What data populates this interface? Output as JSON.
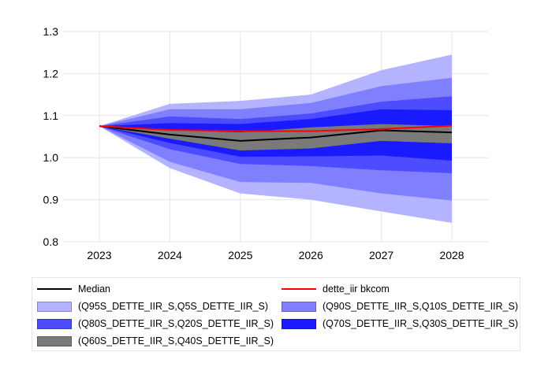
{
  "chart_data": {
    "type": "area",
    "title": "",
    "xlabel": "",
    "ylabel": "",
    "x": [
      2023,
      2024,
      2025,
      2026,
      2027,
      2028
    ],
    "x_ticks": [
      "2023",
      "2024",
      "2025",
      "2026",
      "2027",
      "2028"
    ],
    "ylim": [
      0.8,
      1.3
    ],
    "y_ticks": [
      "0.8",
      "0.9",
      "1.0",
      "1.1",
      "1.2",
      "1.3"
    ],
    "grid": true,
    "legend_placement": "bottom",
    "fan_bands": [
      {
        "name": "(Q95S_DETTE_IIR_S,Q5S_DETTE_IIR_S)",
        "color": "#b3b3ff",
        "upper": [
          1.075,
          1.128,
          1.135,
          1.15,
          1.208,
          1.245
        ],
        "lower": [
          1.075,
          0.975,
          0.915,
          0.9,
          0.872,
          0.845
        ]
      },
      {
        "name": "(Q90S_DETTE_IIR_S,Q10S_DETTE_IIR_S)",
        "color": "#8080ff",
        "upper": [
          1.075,
          1.115,
          1.115,
          1.13,
          1.17,
          1.19
        ],
        "lower": [
          1.075,
          0.99,
          0.942,
          0.94,
          0.915,
          0.898
        ]
      },
      {
        "name": "(Q80S_DETTE_IIR_S,Q20S_DETTE_IIR_S)",
        "color": "#4d4dff",
        "upper": [
          1.075,
          1.098,
          1.092,
          1.105,
          1.133,
          1.146
        ],
        "lower": [
          1.075,
          1.02,
          0.985,
          0.98,
          0.97,
          0.963
        ]
      },
      {
        "name": "(Q70S_DETTE_IIR_S,Q30S_DETTE_IIR_S)",
        "color": "#1a1aff",
        "upper": [
          1.075,
          1.082,
          1.08,
          1.092,
          1.115,
          1.113
        ],
        "lower": [
          1.075,
          1.035,
          1.002,
          1.003,
          1.005,
          0.993
        ]
      },
      {
        "name": "(Q60S_DETTE_IIR_S,Q40S_DETTE_IIR_S)",
        "color": "#7a7a7a",
        "upper": [
          1.075,
          1.066,
          1.06,
          1.072,
          1.08,
          1.075
        ],
        "lower": [
          1.075,
          1.045,
          1.017,
          1.022,
          1.04,
          1.034
        ]
      }
    ],
    "series": [
      {
        "name": "Median",
        "color": "#000000",
        "values": [
          1.075,
          1.055,
          1.04,
          1.048,
          1.065,
          1.06
        ]
      },
      {
        "name": "dette_iir bkcom",
        "color": "#ff0000",
        "values": [
          1.075,
          1.066,
          1.063,
          1.063,
          1.068,
          1.076
        ]
      }
    ]
  }
}
